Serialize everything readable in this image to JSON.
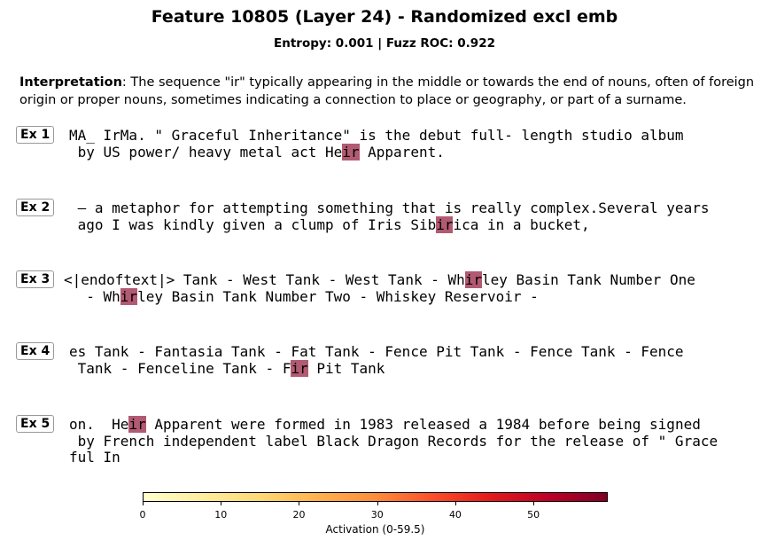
{
  "title": "Feature 10805 (Layer 24) - Randomized excl emb",
  "subtitle": "Entropy: 0.001  |  Fuzz ROC: 0.922",
  "interpretation": {
    "label": "Interpretation",
    "text": ": The sequence \"ir\" typically appearing in the middle or towards the end of nouns, often of foreign origin or proper nouns, sometimes indicating a connection to place or geography, or part of a surname."
  },
  "highlight_color": "#b25a72",
  "examples": [
    {
      "label": "Ex 1",
      "lines": [
        [
          {
            "t": "MA_ IrMa. \" Graceful Inheritance\" is the debut full- length studio album"
          }
        ],
        [
          {
            "t": " by US power/ heavy metal act He"
          },
          {
            "t": "ir",
            "h": true
          },
          {
            "t": " Apparent."
          }
        ]
      ]
    },
    {
      "label": "Ex 2",
      "lines": [
        [
          {
            "t": " – a metaphor for attempting something that is really complex.Several years"
          }
        ],
        [
          {
            "t": " ago I was kindly given a clump of Iris Sib"
          },
          {
            "t": "ir",
            "h": true
          },
          {
            "t": "ica in a bucket,"
          }
        ]
      ]
    },
    {
      "label": "Ex 3",
      "lines": [
        [
          {
            "t": "<|endoftext|> Tank - West Tank - West Tank - Wh"
          },
          {
            "t": "ir",
            "h": true
          },
          {
            "t": "ley Basin Tank Number One"
          }
        ],
        [
          {
            "t": "  - Wh"
          },
          {
            "t": "ir",
            "h": true
          },
          {
            "t": "ley Basin Tank Number Two - Whiskey Reservoir -"
          }
        ]
      ]
    },
    {
      "label": "Ex 4",
      "lines": [
        [
          {
            "t": "es Tank - Fantasia Tank - Fat Tank - Fence Pit Tank - Fence Tank - Fence"
          }
        ],
        [
          {
            "t": " Tank - Fenceline Tank - F"
          },
          {
            "t": "ir",
            "h": true
          },
          {
            "t": " Pit Tank"
          }
        ]
      ]
    },
    {
      "label": "Ex 5",
      "lines": [
        [
          {
            "t": "on.  He"
          },
          {
            "t": "ir",
            "h": true
          },
          {
            "t": " Apparent were formed in 1983 released a 1984 before being signed"
          }
        ],
        [
          {
            "t": " by French independent label Black Dragon Records for the release of \" Grace"
          }
        ],
        [
          {
            "t": "ful In"
          }
        ]
      ]
    }
  ],
  "chart_data": {
    "type": "heatmap",
    "colorbar": {
      "label": "Activation (0-59.5)",
      "range": [
        0,
        59.5
      ],
      "ticks": [
        0,
        10,
        20,
        30,
        40,
        50
      ],
      "colormap": "YlOrRd"
    }
  }
}
